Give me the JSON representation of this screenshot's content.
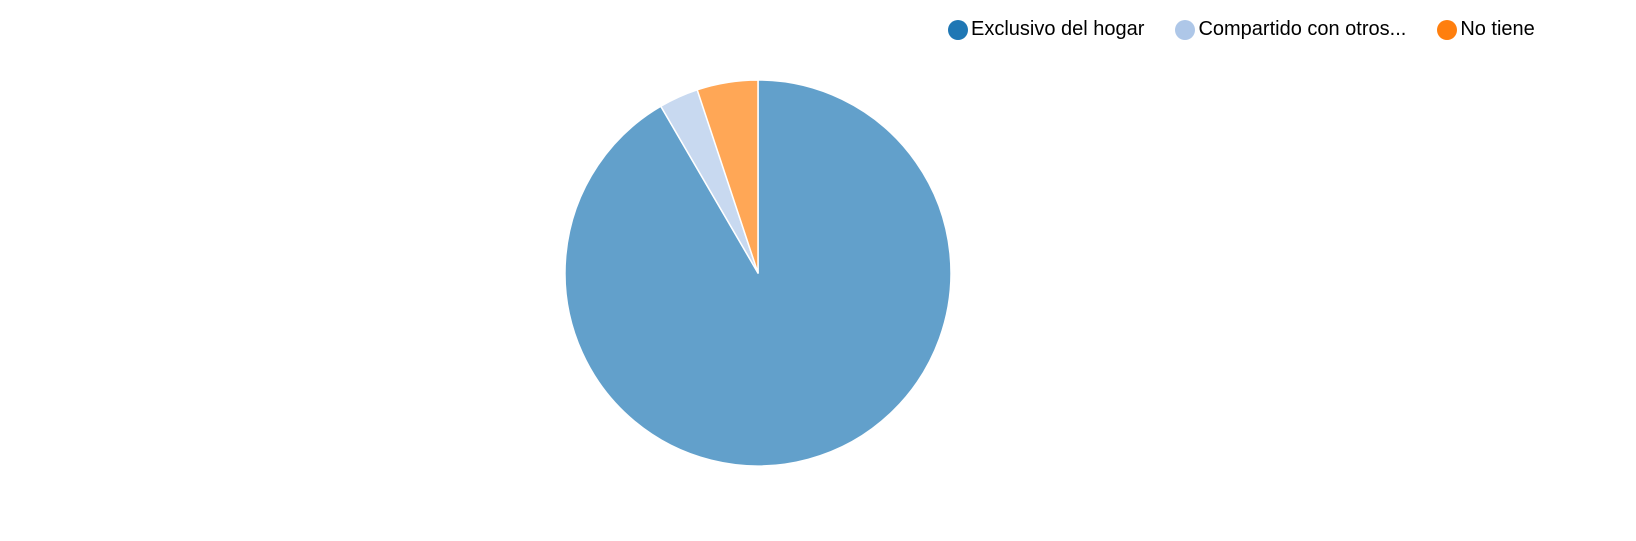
{
  "chart_data": {
    "type": "pie",
    "legend_position": "top-right",
    "slices": [
      {
        "label": "Exclusivo del hogar",
        "value": 91.6,
        "color": "#62a0cb",
        "legend_color": "#1f77b4"
      },
      {
        "label": "Compartido con otros...",
        "value": 3.3,
        "color": "#c8d9f0",
        "legend_color": "#aec7e8"
      },
      {
        "label": "No tiene",
        "value": 5.1,
        "color": "#ffa756",
        "legend_color": "#ff7f0e"
      }
    ]
  }
}
